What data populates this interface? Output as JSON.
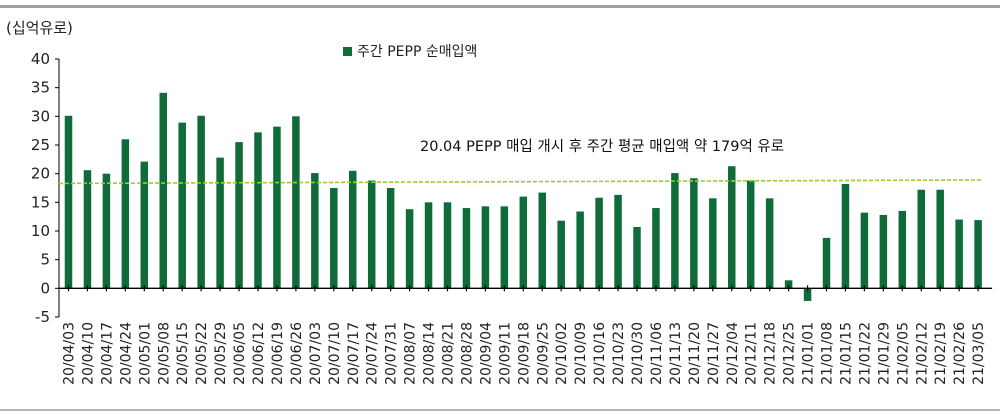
{
  "chart_data": {
    "type": "bar",
    "unit_label": "(십억유로)",
    "legend": "주간 PEPP 순매입액",
    "annotation": "20.04 PEPP 매입 개시 후 주간 평균 매입액 약 179억 유로",
    "average_line": 18.3,
    "average_line_end": 18.9,
    "ylim": [
      -5,
      40
    ],
    "yticks": [
      -5,
      0,
      5,
      10,
      15,
      20,
      25,
      30,
      35,
      40
    ],
    "categories": [
      "20/04/03",
      "20/04/10",
      "20/04/17",
      "20/04/24",
      "20/05/01",
      "20/05/08",
      "20/05/15",
      "20/05/22",
      "20/05/29",
      "20/06/05",
      "20/06/12",
      "20/06/19",
      "20/06/26",
      "20/07/03",
      "20/07/10",
      "20/07/17",
      "20/07/24",
      "20/07/31",
      "20/08/07",
      "20/08/14",
      "20/08/21",
      "20/08/28",
      "20/09/04",
      "20/09/11",
      "20/09/18",
      "20/09/25",
      "20/10/02",
      "20/10/09",
      "20/10/16",
      "20/10/23",
      "20/10/30",
      "20/11/06",
      "20/11/13",
      "20/11/20",
      "20/11/27",
      "20/12/04",
      "20/12/11",
      "20/12/18",
      "20/12/25",
      "21/01/01",
      "21/01/08",
      "21/01/15",
      "21/01/22",
      "21/01/29",
      "21/02/05",
      "21/02/12",
      "21/02/19",
      "21/02/26",
      "21/03/05"
    ],
    "series": [
      {
        "name": "주간 PEPP 순매입액",
        "values": [
          30.1,
          20.6,
          20.0,
          26.0,
          22.1,
          34.1,
          28.9,
          30.1,
          22.8,
          25.5,
          27.2,
          28.2,
          30.0,
          20.1,
          17.5,
          20.5,
          18.8,
          17.5,
          13.8,
          15.0,
          15.0,
          14.0,
          14.3,
          14.3,
          16.0,
          16.7,
          11.8,
          13.4,
          15.8,
          16.3,
          10.7,
          14.0,
          20.1,
          19.2,
          15.7,
          21.3,
          18.8,
          15.7,
          1.4,
          -2.2,
          8.8,
          18.2,
          13.2,
          12.8,
          13.5,
          17.2,
          17.2,
          12.0,
          11.9
        ]
      }
    ],
    "colors": {
      "bar": "#0f6b39",
      "average": "#9acd32",
      "axis": "#000000"
    }
  }
}
